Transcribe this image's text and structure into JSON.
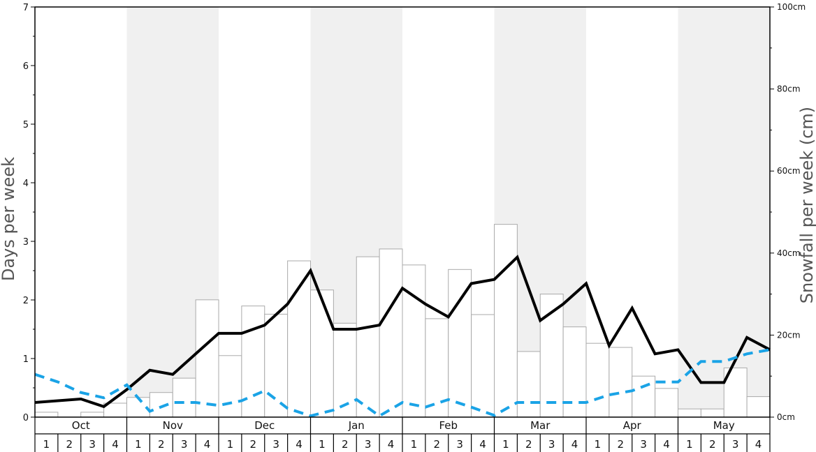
{
  "chart_data": {
    "type": "bar",
    "y_left_label": "Days per week",
    "y_right_label": "Snowfall per week (cm)",
    "y_left_ticks": [
      "0",
      "1",
      "2",
      "3",
      "4",
      "5",
      "6",
      "7"
    ],
    "y_left_range": [
      0,
      7
    ],
    "y_right_ticks": [
      "0cm",
      "20cm",
      "40cm",
      "60cm",
      "80cm",
      "100cm"
    ],
    "y_right_range": [
      0,
      100
    ],
    "months": [
      "Oct",
      "Nov",
      "Dec",
      "Jan",
      "Feb",
      "Mar",
      "Apr",
      "May"
    ],
    "week_labels": [
      "1",
      "2",
      "3",
      "4"
    ],
    "shaded_months": [
      "Nov",
      "Jan",
      "Mar",
      "May"
    ],
    "colors": {
      "shade": "#f0f0f0",
      "bar_fill": "#ffffff",
      "bar_stroke": "#aaaaaa",
      "solid_line": "#000000",
      "dashed_line": "#1aa3e6",
      "axis": "#000000"
    },
    "series": [
      {
        "type": "bar",
        "axis": "right",
        "values": [
          1.2,
          0,
          1.2,
          3.4,
          4.8,
          6.0,
          9.5,
          28.6,
          15.0,
          27.1,
          25.1,
          38.1,
          31.0,
          22.9,
          39.1,
          41.0,
          37.1,
          24.0,
          36.0,
          25.0,
          47.0,
          16.0,
          30.0,
          22.0,
          18.0,
          17.0,
          10.0,
          7.0,
          2.0,
          2.0,
          12.0,
          5.0
        ]
      },
      {
        "type": "line",
        "style": "solid",
        "axis": "left",
        "values": [
          0.25,
          0.28,
          0.31,
          0.18,
          0.47,
          0.8,
          0.73,
          1.08,
          1.43,
          1.43,
          1.57,
          1.93,
          2.5,
          1.5,
          1.5,
          1.57,
          2.2,
          1.93,
          1.71,
          2.28,
          2.35,
          2.73,
          1.65,
          1.93,
          2.28,
          1.22,
          1.86,
          1.08,
          1.15,
          0.59,
          0.59,
          1.36,
          1.15
        ]
      },
      {
        "type": "line",
        "style": "dashed",
        "axis": "left",
        "values": [
          0.73,
          0.6,
          0.42,
          0.33,
          0.55,
          0.1,
          0.25,
          0.25,
          0.2,
          0.28,
          0.45,
          0.15,
          0.02,
          0.12,
          0.3,
          0.02,
          0.25,
          0.17,
          0.3,
          0.17,
          0.03,
          0.25,
          0.25,
          0.25,
          0.25,
          0.38,
          0.45,
          0.6,
          0.6,
          0.95,
          0.95,
          1.08,
          1.15
        ]
      }
    ]
  }
}
